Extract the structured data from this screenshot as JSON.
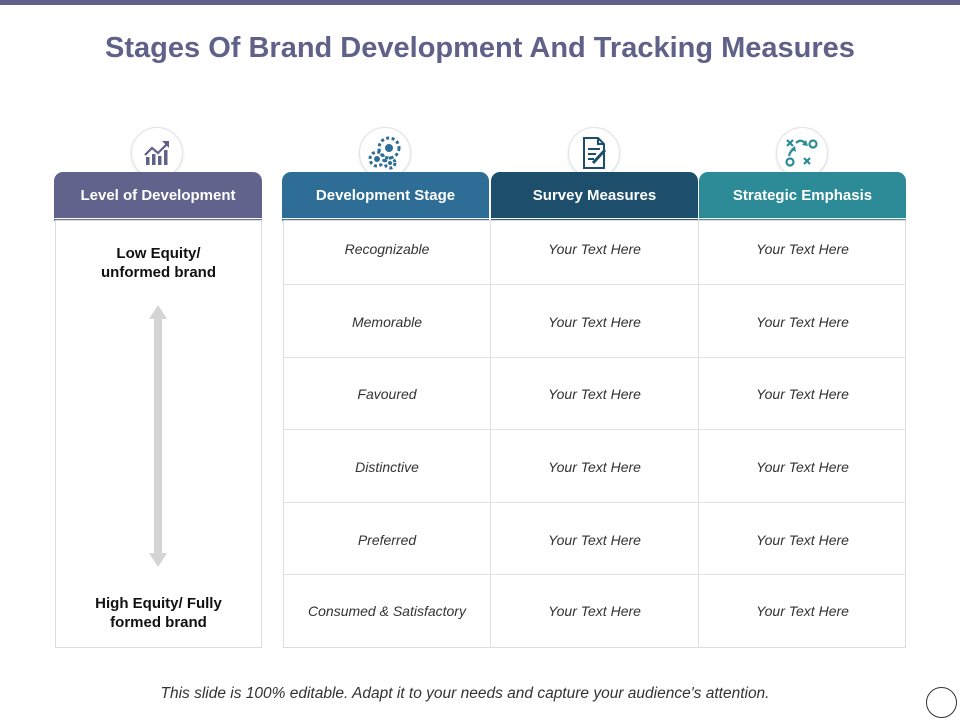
{
  "title": "Stages Of Brand Development And Tracking Measures",
  "colors": {
    "top_bar": "#5f6189",
    "title": "#5f6189",
    "level_header": "#62638c",
    "stage_header": "#2e6e96",
    "survey_header": "#1d4f6d",
    "strategic_header": "#2d8b97"
  },
  "columns": [
    {
      "key": "level",
      "label": "Level of Development",
      "icon": "growth-chart-icon"
    },
    {
      "key": "stage",
      "label": "Development Stage",
      "icon": "gears-icon"
    },
    {
      "key": "survey",
      "label": "Survey Measures",
      "icon": "document-edit-icon"
    },
    {
      "key": "strategic",
      "label": "Strategic Emphasis",
      "icon": "strategy-play-icon"
    }
  ],
  "level": {
    "top_label": "Low Equity/\nunformed brand",
    "bottom_label": "High Equity/ Fully\nformed brand"
  },
  "rows": [
    {
      "stage": "Recognizable",
      "survey": "Your Text Here",
      "strategic": "Your Text Here"
    },
    {
      "stage": "Memorable",
      "survey": "Your Text Here",
      "strategic": "Your Text Here"
    },
    {
      "stage": "Favoured",
      "survey": "Your Text Here",
      "strategic": "Your Text Here"
    },
    {
      "stage": "Distinctive",
      "survey": "Your Text Here",
      "strategic": "Your Text Here"
    },
    {
      "stage": "Preferred",
      "survey": "Your Text Here",
      "strategic": "Your Text Here"
    },
    {
      "stage": "Consumed & Satisfactory",
      "survey": "Your Text Here",
      "strategic": "Your Text Here"
    }
  ],
  "footer": "This slide is 100% editable. Adapt it to your needs and capture your audience's attention."
}
